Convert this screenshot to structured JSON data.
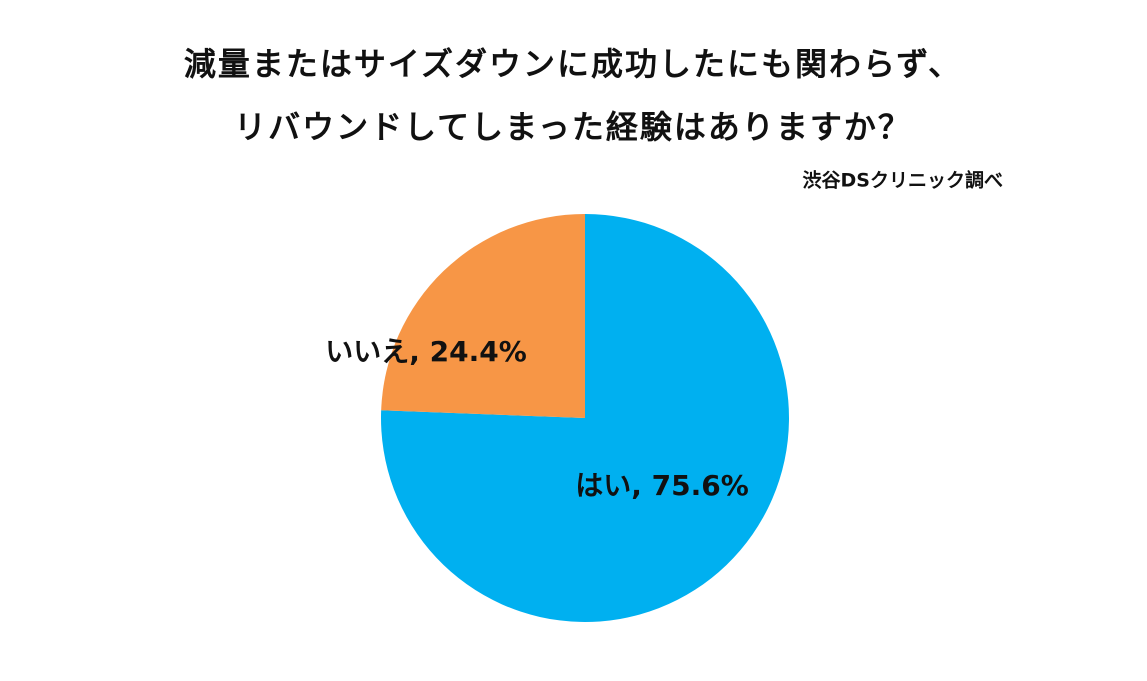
{
  "chart_data": {
    "type": "pie",
    "title": [
      "減量またはサイズダウンに成功したにも関わらず、",
      "リバウンドしてしまった経験はありますか？"
    ],
    "subtitle": "渋谷DSクリニック調べ",
    "values": [
      75.6,
      24.4
    ],
    "value_labels": [
      "はい, 75.6%",
      "いいえ, 24.4%"
    ],
    "colors": [
      "#00b0f0",
      "#f79646"
    ]
  }
}
